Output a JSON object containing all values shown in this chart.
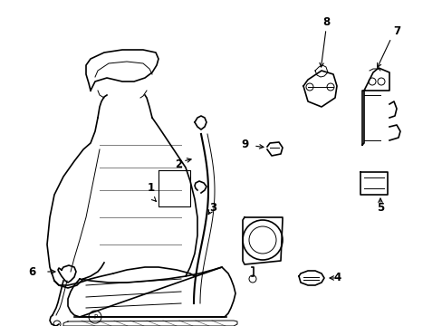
{
  "background_color": "#ffffff",
  "line_color": "#000000",
  "label_fontsize": 8.5,
  "lw_main": 1.2,
  "lw_thin": 0.7,
  "lw_belt": 1.5
}
